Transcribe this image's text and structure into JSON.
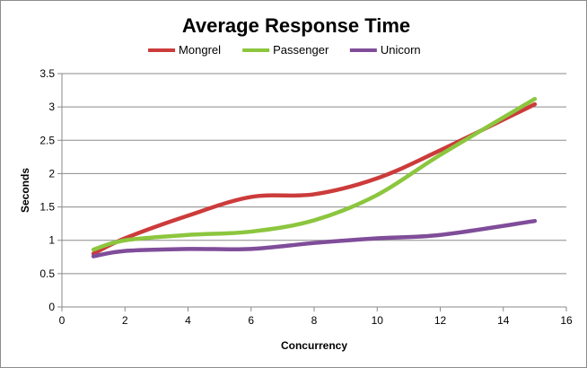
{
  "chart_data": {
    "type": "line",
    "title": "Average Response Time",
    "xlabel": "Concurrency",
    "ylabel": "Seconds",
    "xlim": [
      0,
      16
    ],
    "ylim": [
      0,
      3.5
    ],
    "x_ticks": [
      "0",
      "2",
      "4",
      "6",
      "8",
      "10",
      "12",
      "14",
      "16"
    ],
    "y_ticks": [
      "0",
      "0.5",
      "1",
      "1.5",
      "2",
      "2.5",
      "3",
      "3.5"
    ],
    "grid": "horizontal",
    "legend_position": "top",
    "smooth": true,
    "x": [
      1,
      2,
      4,
      6,
      8,
      10,
      12,
      15
    ],
    "series": [
      {
        "name": "Mongrel",
        "color": "#cc3b3b",
        "values": [
          0.8,
          1.03,
          1.37,
          1.65,
          1.69,
          1.93,
          2.35,
          3.04
        ]
      },
      {
        "name": "Passenger",
        "color": "#8cc63e",
        "values": [
          0.86,
          1.0,
          1.08,
          1.13,
          1.3,
          1.68,
          2.28,
          3.12
        ]
      },
      {
        "name": "Unicorn",
        "color": "#7f4d99",
        "values": [
          0.76,
          0.84,
          0.87,
          0.87,
          0.96,
          1.03,
          1.08,
          1.29
        ]
      }
    ]
  }
}
